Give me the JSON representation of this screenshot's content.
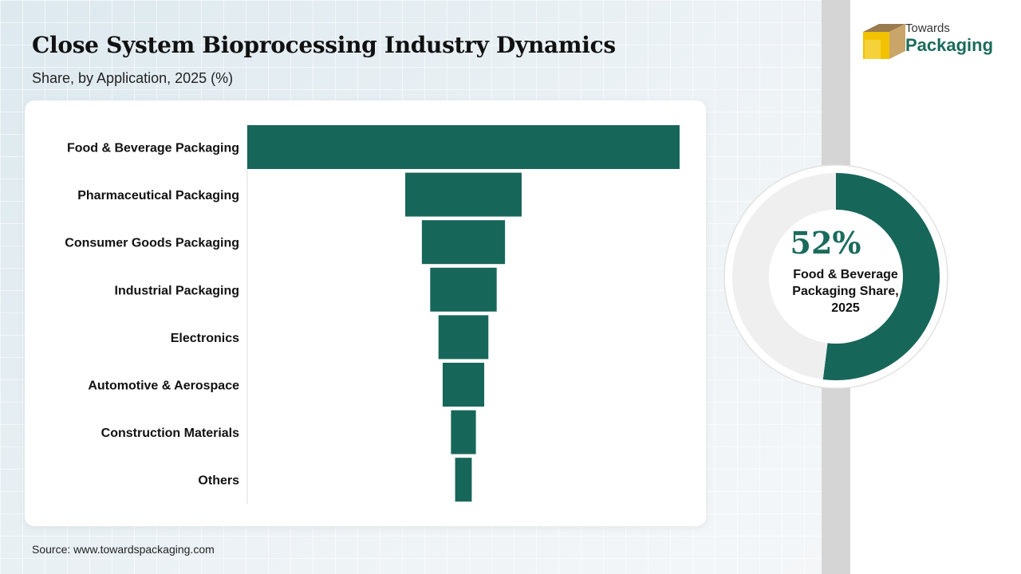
{
  "header": {
    "title": "Close System Bioprocessing Industry Dynamics",
    "subtitle": "Share, by Application, 2025 (%)"
  },
  "logo": {
    "line1": "Towards",
    "line2": "Packaging"
  },
  "chart_data": [
    {
      "type": "bar",
      "style": "centered-funnel",
      "title": "Close System Bioprocessing Industry Dynamics",
      "subtitle": "Share, by Application, 2025 (%)",
      "categories": [
        "Food & Beverage Packaging",
        "Pharmaceutical Packaging",
        "Consumer Goods Packaging",
        "Industrial Packaging",
        "Electronics",
        "Automotive & Aerospace",
        "Construction Materials",
        "Others"
      ],
      "values": [
        52,
        14,
        10,
        8,
        6,
        5,
        3,
        2
      ],
      "xlabel": "",
      "ylabel": "",
      "color": "#17665a"
    },
    {
      "type": "pie",
      "style": "donut",
      "highlight_value": "52%",
      "highlight_label": "Food & Beverage Packaging Share, 2025",
      "values": [
        52,
        48
      ],
      "colors": [
        "#17665a",
        "#efefef"
      ]
    }
  ],
  "source": "Source: www.towardspackaging.com"
}
